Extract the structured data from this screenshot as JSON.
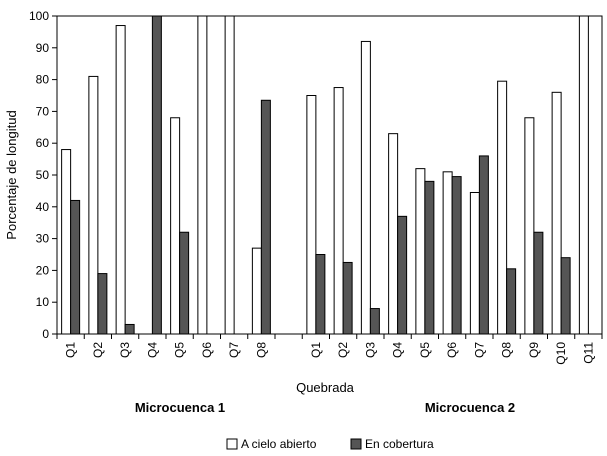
{
  "chart_data": {
    "type": "bar",
    "title": "",
    "xlabel": "Quebrada",
    "ylabel": "Porcentaje de longitud",
    "ylim": [
      0,
      100
    ],
    "yticks": [
      0,
      10,
      20,
      30,
      40,
      50,
      60,
      70,
      80,
      90,
      100
    ],
    "legend_position": "bottom",
    "grid": false,
    "groups": [
      {
        "label": "Microcuenca 1",
        "categories": [
          "Q1",
          "Q2",
          "Q3",
          "Q4",
          "Q5",
          "Q6",
          "Q7",
          "Q8"
        ]
      },
      {
        "label": "Microcuenca 2",
        "categories": [
          "Q1",
          "Q2",
          "Q3",
          "Q4",
          "Q5",
          "Q6",
          "Q7",
          "Q8",
          "Q9",
          "Q10",
          "Q11"
        ]
      }
    ],
    "series": [
      {
        "name": "A cielo abierto",
        "color": "#ffffff",
        "values": [
          58,
          81,
          97,
          0,
          68,
          100,
          100,
          27,
          75,
          77.5,
          92,
          63,
          52,
          51,
          44.5,
          79.5,
          68,
          76,
          100
        ]
      },
      {
        "name": "En cobertura",
        "color": "#555555",
        "values": [
          42,
          19,
          3,
          100,
          32,
          0,
          0,
          73.5,
          25,
          22.5,
          8,
          37,
          48,
          49.5,
          56,
          20.5,
          32,
          24,
          0
        ]
      }
    ]
  }
}
